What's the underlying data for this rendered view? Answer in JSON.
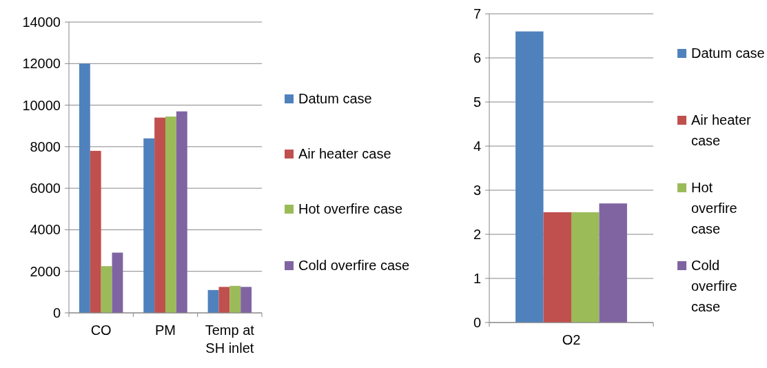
{
  "chart_data": [
    {
      "type": "bar",
      "categories": [
        "CO",
        "PM",
        "Temp at SH inlet"
      ],
      "ylim": [
        0,
        14000
      ],
      "yticks": [
        0,
        2000,
        4000,
        6000,
        8000,
        10000,
        12000,
        14000
      ],
      "grid": "y",
      "legend": "right",
      "series": [
        {
          "name": "Datum case",
          "color": "#4f81bd",
          "values": [
            12000,
            8400,
            1100
          ]
        },
        {
          "name": "Air heater case",
          "color": "#c0504d",
          "values": [
            7800,
            9400,
            1250
          ]
        },
        {
          "name": "Hot overfire case",
          "color": "#9bbb59",
          "values": [
            2250,
            9450,
            1300
          ]
        },
        {
          "name": "Cold overfire case",
          "color": "#8064a2",
          "values": [
            2900,
            9700,
            1250
          ]
        }
      ]
    },
    {
      "type": "bar",
      "categories": [
        "O2"
      ],
      "ylim": [
        0,
        7
      ],
      "yticks": [
        0,
        1,
        2,
        3,
        4,
        5,
        6,
        7
      ],
      "grid": "y",
      "legend": "right",
      "series": [
        {
          "name": "Datum case",
          "color": "#4f81bd",
          "values": [
            6.6
          ]
        },
        {
          "name": "Air heater case",
          "color": "#c0504d",
          "values": [
            2.5
          ]
        },
        {
          "name": "Hot overfire case",
          "color": "#9bbb59",
          "values": [
            2.5
          ]
        },
        {
          "name": "Cold overfire case",
          "color": "#8064a2",
          "values": [
            2.7
          ]
        }
      ]
    }
  ]
}
